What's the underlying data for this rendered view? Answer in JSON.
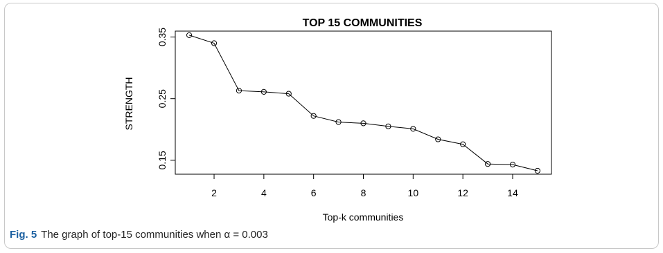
{
  "caption": {
    "label": "Fig. 5",
    "text": "The graph of top-15 communities when α = 0.003"
  },
  "chart_data": {
    "type": "line",
    "title": "TOP 15 COMMUNITIES",
    "xlabel": "Top-k communities",
    "ylabel": "STRENGTH",
    "xlim": [
      0.44,
      15.56
    ],
    "ylim": [
      0.1274,
      0.3596
    ],
    "xticks": [
      2,
      4,
      6,
      8,
      10,
      12,
      14
    ],
    "yticks": [
      0.15,
      0.25,
      0.35
    ],
    "ytick_labels": [
      "0.15",
      "0.25",
      "0.35"
    ],
    "grid": false,
    "marker": "open-circle",
    "x": [
      1,
      2,
      3,
      4,
      5,
      6,
      7,
      8,
      9,
      10,
      11,
      12,
      13,
      14,
      15
    ],
    "y": [
      0.353,
      0.34,
      0.263,
      0.261,
      0.258,
      0.222,
      0.212,
      0.21,
      0.205,
      0.201,
      0.184,
      0.176,
      0.144,
      0.143,
      0.133
    ]
  }
}
